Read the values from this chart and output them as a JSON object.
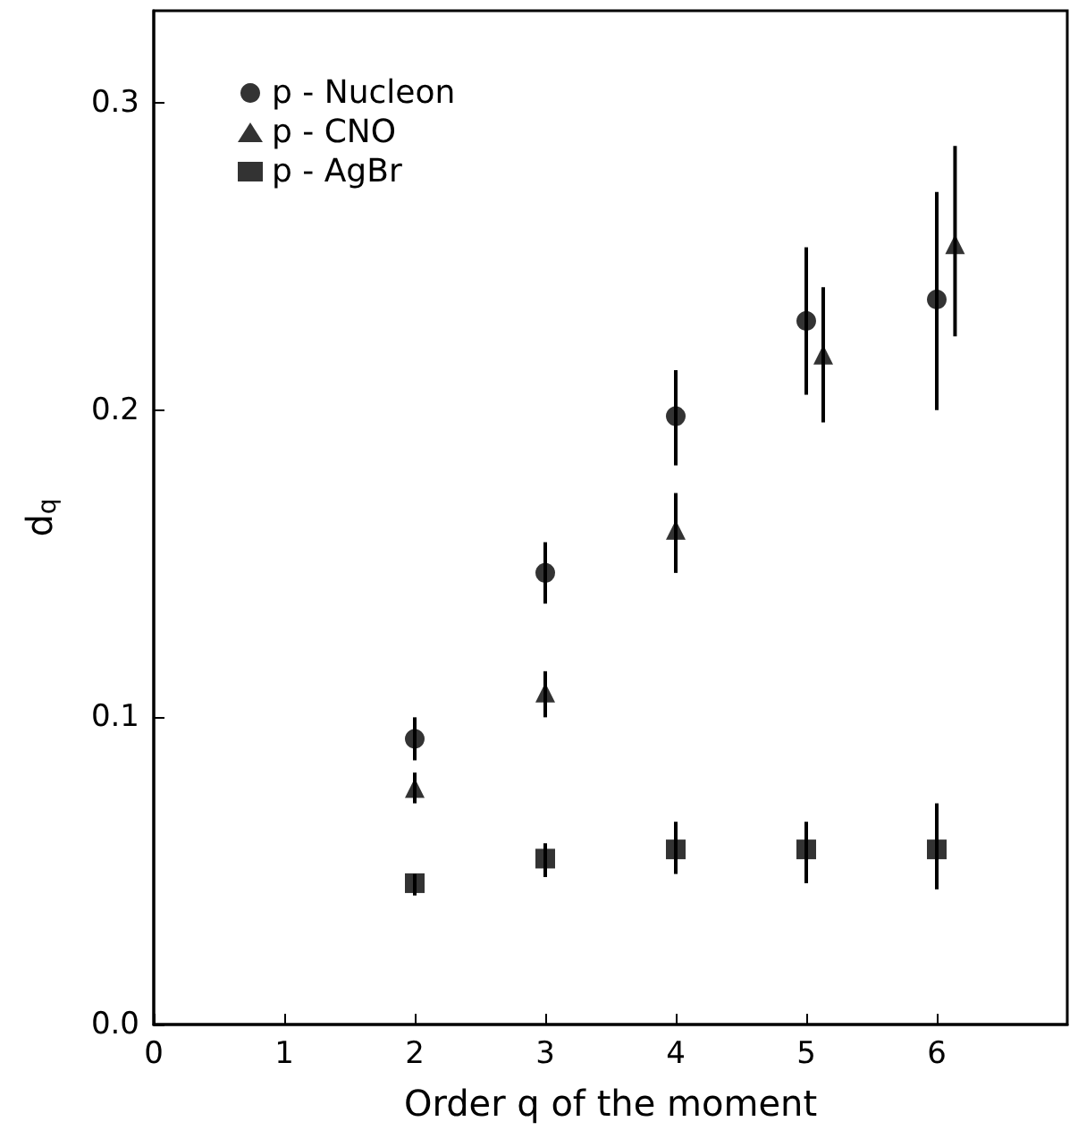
{
  "chart_data": {
    "type": "scatter",
    "xlabel": "Order q of the moment",
    "ylabel": "d$_{q}$",
    "xlim": [
      0,
      7
    ],
    "xticks": [
      0,
      1,
      2,
      3,
      4,
      5,
      6
    ],
    "ylim": [
      0,
      0.33
    ],
    "yticks": [
      {
        "value": 0,
        "label": "0.0"
      },
      {
        "value": 0.1,
        "label": "0.1"
      },
      {
        "value": 0.2,
        "label": "0.2"
      },
      {
        "value": 0.3,
        "label": "0.3"
      }
    ],
    "grid": false,
    "legend": "top left",
    "series": [
      {
        "name": "p - Nucleon",
        "color": "#000000",
        "marker": "circle",
        "x": [
          2,
          3,
          4,
          5,
          6
        ],
        "values": [
          0.093,
          0.147,
          0.198,
          0.229,
          0.236
        ],
        "errors": [
          [
            0.086,
            0.1
          ],
          [
            0.137,
            0.157
          ],
          [
            0.182,
            0.213
          ],
          [
            0.205,
            0.253
          ],
          [
            0.2,
            0.271
          ]
        ]
      },
      {
        "name": "p - CNO",
        "color": "#000000",
        "marker": "triangle",
        "x": [
          2,
          3,
          4,
          5.13,
          6.14
        ],
        "values": [
          0.077,
          0.108,
          0.161,
          0.218,
          0.254
        ],
        "errors": [
          [
            0.072,
            0.082
          ],
          [
            0.1,
            0.115
          ],
          [
            0.147,
            0.173
          ],
          [
            0.196,
            0.24
          ],
          [
            0.224,
            0.286
          ]
        ]
      },
      {
        "name": "p - AgBr",
        "color": "#000000",
        "marker": "square",
        "x": [
          2,
          3,
          4,
          5,
          6
        ],
        "values": [
          0.046,
          0.054,
          0.057,
          0.057,
          0.057
        ],
        "errors": [
          [
            0.042,
            0.049
          ],
          [
            0.048,
            0.059
          ],
          [
            0.049,
            0.066
          ],
          [
            0.046,
            0.066
          ],
          [
            0.044,
            0.072
          ]
        ]
      }
    ]
  }
}
